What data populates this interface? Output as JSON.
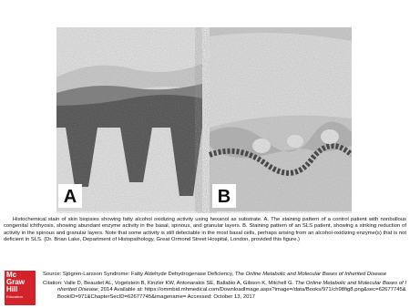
{
  "figure": {
    "panels": [
      {
        "label": "A"
      },
      {
        "label": "B"
      }
    ],
    "caption": "Histochemical stain of skin biopsies showing fatty alcohol oxidizing activity using hexanol as substrate. A. The staining pattern of a control patient with nonbullous congenital ichthyosis, showing abundant enzyme activity in the basal, spinous, and granular layers. B. Staining pattern of an SLS patient, showing a striking reduction of activity in the spinous and granular layers. Note that some activity is still detectable in the most basal cells, perhaps arising from an alcohol-oxidizing enzyme(s) that is not deficient in SLS. (Dr. Brian Lake, Department of Histopathology, Great Ormond Street Hospital, London, provided this figure.)"
  },
  "footer": {
    "logo": [
      "Mc",
      "Graw",
      "Hill",
      "Education"
    ],
    "source": {
      "prefix": "Source: Sjögren-Larsson Syndrome: Fatty Aldehyde Dehydrogenase Deficiency, ",
      "title": "The Online Metabolic and Molecular Bases of Inherited Disease"
    },
    "citation": {
      "prefix": "Citation: Valle D, Beaudet AL, Vogelstein B, Kinzler KW, Antonarakis SE, Ballabio A, Gibson K, Mitchell G. ",
      "title": "The Online Metabolic and Molecular Bases of Inherited Disease",
      "suffix": "; 2014 Available at: https://ommbid.mhmedical.com/DownloadImage.aspx?image=/data/Books/971/ch98fig8.png&sec=62677745&BookID=971&ChapterSecID=62677745&imagename= Accessed: October 13, 2017"
    }
  }
}
